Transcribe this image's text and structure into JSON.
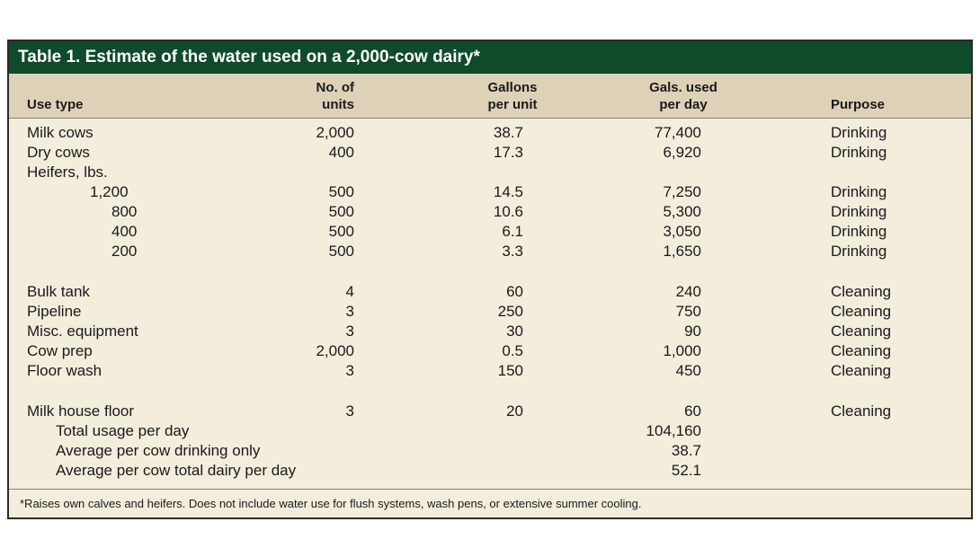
{
  "title": "Table 1.  Estimate of the water used on a 2,000-cow dairy*",
  "headers": {
    "use_type": "Use type",
    "units_1": "No. of",
    "units_2": "units",
    "gpu_1": "Gallons",
    "gpu_2": "per unit",
    "gpd_1": "Gals. used",
    "gpd_2": "per day",
    "purpose": "Purpose"
  },
  "rows": [
    {
      "label": "Milk cows",
      "units": "2,000",
      "gpu": "38.7",
      "gpd": "77,400",
      "purpose": "Drinking"
    },
    {
      "label": "Dry cows",
      "units": "400",
      "gpu": "17.3",
      "gpd": "6,920",
      "purpose": "Drinking"
    },
    {
      "label": "Heifers, lbs.",
      "units": "",
      "gpu": "",
      "gpd": "",
      "purpose": ""
    },
    {
      "label": "1,200",
      "units": "500",
      "gpu": "14.5",
      "gpd": "7,250",
      "purpose": "Drinking"
    },
    {
      "label": "800",
      "units": "500",
      "gpu": "10.6",
      "gpd": "5,300",
      "purpose": "Drinking"
    },
    {
      "label": "400",
      "units": "500",
      "gpu": "6.1",
      "gpd": "3,050",
      "purpose": "Drinking"
    },
    {
      "label": "200",
      "units": "500",
      "gpu": "3.3",
      "gpd": "1,650",
      "purpose": "Drinking"
    },
    {
      "label": "Bulk tank",
      "units": "4",
      "gpu": "60",
      "gpd": "240",
      "purpose": "Cleaning"
    },
    {
      "label": "Pipeline",
      "units": "3",
      "gpu": "250",
      "gpd": "750",
      "purpose": "Cleaning"
    },
    {
      "label": "Misc. equipment",
      "units": "3",
      "gpu": "30",
      "gpd": "90",
      "purpose": "Cleaning"
    },
    {
      "label": "Cow prep",
      "units": "2,000",
      "gpu": "0.5",
      "gpd": "1,000",
      "purpose": "Cleaning"
    },
    {
      "label": "Floor wash",
      "units": "3",
      "gpu": "150",
      "gpd": "450",
      "purpose": "Cleaning"
    },
    {
      "label": "Milk house floor",
      "units": "3",
      "gpu": "20",
      "gpd": "60",
      "purpose": "Cleaning"
    },
    {
      "label": "Total usage per day",
      "units": "",
      "gpu": "",
      "gpd": "104,160",
      "purpose": ""
    },
    {
      "label": "Average per cow drinking only",
      "units": "",
      "gpu": "",
      "gpd": "38.7",
      "purpose": ""
    },
    {
      "label": "Average per cow total dairy per day",
      "units": "",
      "gpu": "",
      "gpd": "52.1",
      "purpose": ""
    }
  ],
  "footnote": "*Raises own calves and heifers. Does not include water use for flush systems, wash pens, or extensive summer cooling.",
  "colors": {
    "title_bar": "#0f4a2b",
    "header_band": "#ddd2b7",
    "body": "#f3eddc"
  }
}
